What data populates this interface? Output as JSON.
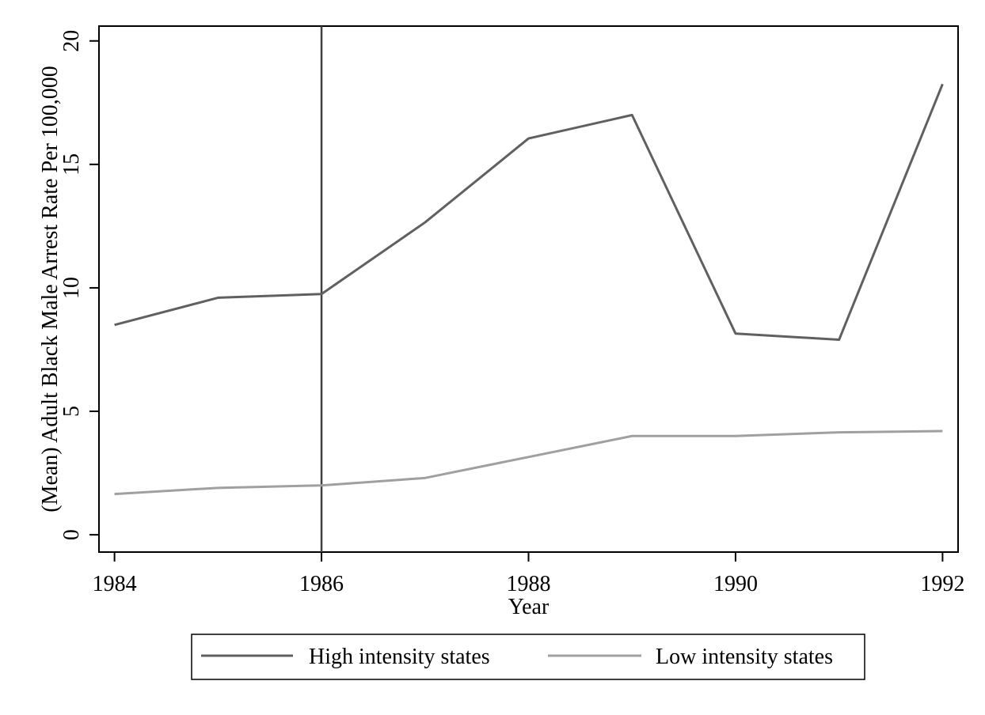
{
  "chart_data": {
    "type": "line",
    "title": "",
    "xlabel": "Year",
    "ylabel": "(Mean) Adult Black Male Arrest Rate Per 100,000",
    "x": [
      1984,
      1985,
      1986,
      1987,
      1988,
      1989,
      1990,
      1991,
      1992
    ],
    "xlim": [
      1983.85,
      1992.15
    ],
    "ylim": [
      -0.7,
      20.6
    ],
    "xticks": [
      1984,
      1986,
      1988,
      1990,
      1992
    ],
    "xtick_labels": [
      "1984",
      "1986",
      "1988",
      "1990",
      "1992"
    ],
    "yticks": [
      0,
      5,
      10,
      15,
      20
    ],
    "ytick_labels": [
      "0",
      "5",
      "10",
      "15",
      "20"
    ],
    "reference_line_x": 1986,
    "grid": false,
    "legend_position": "bottom",
    "series": [
      {
        "name": "High intensity states",
        "color": "#606060",
        "values": [
          8.5,
          9.6,
          9.75,
          12.65,
          16.05,
          17.0,
          8.15,
          7.9,
          18.25
        ]
      },
      {
        "name": "Low intensity states",
        "color": "#a0a0a0",
        "values": [
          1.65,
          1.9,
          2.0,
          2.3,
          3.15,
          4.0,
          4.0,
          4.15,
          4.2
        ]
      }
    ]
  }
}
